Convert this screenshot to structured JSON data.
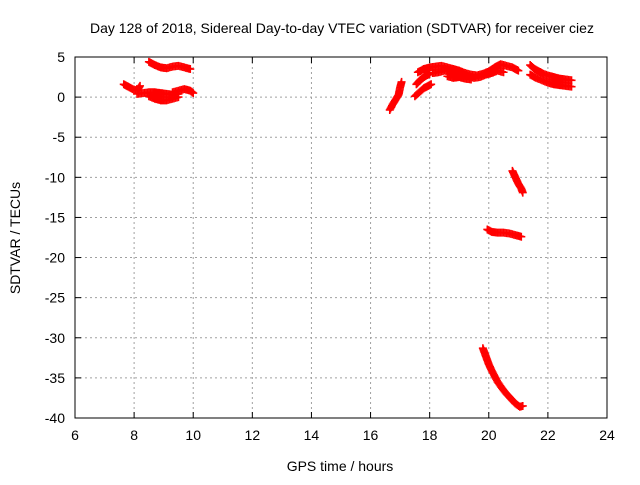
{
  "chart_data": {
    "type": "scatter",
    "title": "Day 128 of 2018, Sidereal Day-to-day VTEC variation (SDTVAR) for receiver ciez",
    "xlabel": "GPS time / hours",
    "ylabel": "SDTVAR / TECUs",
    "xlim": [
      6,
      24
    ],
    "ylim": [
      -40,
      5
    ],
    "xticks": [
      6,
      8,
      10,
      12,
      14,
      16,
      18,
      20,
      22,
      24
    ],
    "yticks": [
      5,
      0,
      -5,
      -10,
      -15,
      -20,
      -25,
      -30,
      -35,
      -40
    ],
    "xtick_labels": [
      "6",
      "8",
      "10",
      "12",
      "14",
      "16",
      "18",
      "20",
      "22",
      "24"
    ],
    "ytick_labels": [
      "5",
      "0",
      "-5",
      "-10",
      "-15",
      "-20",
      "-25",
      "-30",
      "-35",
      "-40"
    ],
    "grid": true,
    "marker": "+",
    "series": [
      {
        "color": "#ff0000",
        "segments": [
          [
            [
              7.65,
              1.6
            ],
            [
              7.8,
              1.3
            ],
            [
              7.95,
              1.0
            ],
            [
              8.1,
              0.8
            ],
            [
              8.2,
              1.4
            ]
          ],
          [
            [
              8.1,
              0.4
            ],
            [
              8.3,
              0.5
            ],
            [
              8.5,
              0.6
            ],
            [
              8.7,
              0.6
            ],
            [
              8.9,
              0.5
            ],
            [
              9.1,
              0.4
            ],
            [
              9.3,
              0.3
            ],
            [
              9.5,
              0.4
            ]
          ],
          [
            [
              8.5,
              0.1
            ],
            [
              8.7,
              -0.2
            ],
            [
              8.9,
              -0.4
            ],
            [
              9.1,
              -0.4
            ],
            [
              9.3,
              -0.2
            ],
            [
              9.5,
              0.0
            ]
          ],
          [
            [
              9.3,
              0.6
            ],
            [
              9.5,
              0.8
            ],
            [
              9.7,
              1.0
            ],
            [
              9.9,
              0.8
            ],
            [
              10.0,
              0.5
            ]
          ],
          [
            [
              8.5,
              4.4
            ],
            [
              8.7,
              4.0
            ],
            [
              8.9,
              3.7
            ],
            [
              9.1,
              3.6
            ],
            [
              9.3,
              3.8
            ],
            [
              9.5,
              3.9
            ],
            [
              9.7,
              3.7
            ],
            [
              9.9,
              3.5
            ]
          ],
          [
            [
              16.65,
              -1.6
            ],
            [
              16.75,
              -0.9
            ],
            [
              16.85,
              -0.3
            ],
            [
              16.95,
              0.3
            ],
            [
              17.0,
              1.2
            ],
            [
              17.05,
              1.9
            ]
          ],
          [
            [
              17.5,
              0.1
            ],
            [
              17.65,
              0.6
            ],
            [
              17.8,
              1.1
            ],
            [
              17.95,
              1.4
            ],
            [
              18.05,
              1.6
            ]
          ],
          [
            [
              17.55,
              1.6
            ],
            [
              17.7,
              2.2
            ],
            [
              17.85,
              2.6
            ],
            [
              18.0,
              2.9
            ]
          ],
          [
            [
              17.6,
              3.1
            ],
            [
              17.8,
              3.5
            ],
            [
              18.0,
              3.7
            ],
            [
              18.2,
              3.8
            ],
            [
              18.4,
              3.9
            ],
            [
              18.6,
              3.7
            ],
            [
              18.8,
              3.5
            ],
            [
              19.0,
              3.3
            ],
            [
              19.2,
              3.0
            ],
            [
              19.4,
              2.8
            ],
            [
              19.6,
              2.7
            ],
            [
              19.8,
              2.9
            ],
            [
              20.0,
              3.2
            ],
            [
              20.2,
              3.7
            ],
            [
              20.4,
              4.1
            ],
            [
              20.6,
              3.9
            ],
            [
              20.8,
              3.7
            ],
            [
              21.0,
              3.3
            ]
          ],
          [
            [
              18.1,
              3.0
            ],
            [
              18.3,
              3.1
            ],
            [
              18.5,
              3.3
            ],
            [
              18.7,
              3.2
            ],
            [
              18.9,
              3.0
            ],
            [
              19.1,
              2.8
            ],
            [
              19.3,
              2.6
            ],
            [
              19.5,
              2.4
            ],
            [
              19.7,
              2.5
            ],
            [
              19.9,
              2.8
            ],
            [
              20.1,
              3.0
            ],
            [
              20.3,
              3.3
            ],
            [
              20.5,
              3.1
            ]
          ],
          [
            [
              18.6,
              2.6
            ],
            [
              18.8,
              2.4
            ],
            [
              19.0,
              2.5
            ],
            [
              19.2,
              2.3
            ],
            [
              19.4,
              2.2
            ]
          ],
          [
            [
              21.4,
              4.0
            ],
            [
              21.55,
              3.5
            ],
            [
              21.7,
              3.2
            ],
            [
              21.85,
              2.9
            ],
            [
              22.0,
              2.7
            ],
            [
              22.2,
              2.5
            ],
            [
              22.4,
              2.3
            ],
            [
              22.6,
              2.2
            ],
            [
              22.8,
              2.1
            ]
          ],
          [
            [
              21.4,
              2.8
            ],
            [
              21.6,
              2.4
            ],
            [
              21.8,
              2.1
            ],
            [
              22.0,
              1.8
            ],
            [
              22.2,
              1.6
            ],
            [
              22.4,
              1.5
            ],
            [
              22.6,
              1.4
            ],
            [
              22.8,
              1.3
            ]
          ],
          [
            [
              20.8,
              -9.2
            ],
            [
              20.9,
              -10.0
            ],
            [
              21.0,
              -10.8
            ],
            [
              21.1,
              -11.4
            ],
            [
              21.15,
              -11.9
            ]
          ],
          [
            [
              19.95,
              -16.5
            ],
            [
              20.1,
              -16.8
            ],
            [
              20.3,
              -16.9
            ],
            [
              20.5,
              -16.9
            ],
            [
              20.7,
              -17.0
            ],
            [
              20.9,
              -17.2
            ],
            [
              21.1,
              -17.4
            ]
          ],
          [
            [
              19.8,
              -31.3
            ],
            [
              19.9,
              -32.3
            ],
            [
              20.0,
              -33.3
            ],
            [
              20.1,
              -34.1
            ],
            [
              20.2,
              -34.8
            ],
            [
              20.3,
              -35.5
            ],
            [
              20.45,
              -36.3
            ],
            [
              20.6,
              -37.0
            ],
            [
              20.75,
              -37.6
            ],
            [
              20.9,
              -38.2
            ],
            [
              21.05,
              -38.6
            ],
            [
              21.15,
              -38.5
            ]
          ]
        ]
      }
    ]
  }
}
